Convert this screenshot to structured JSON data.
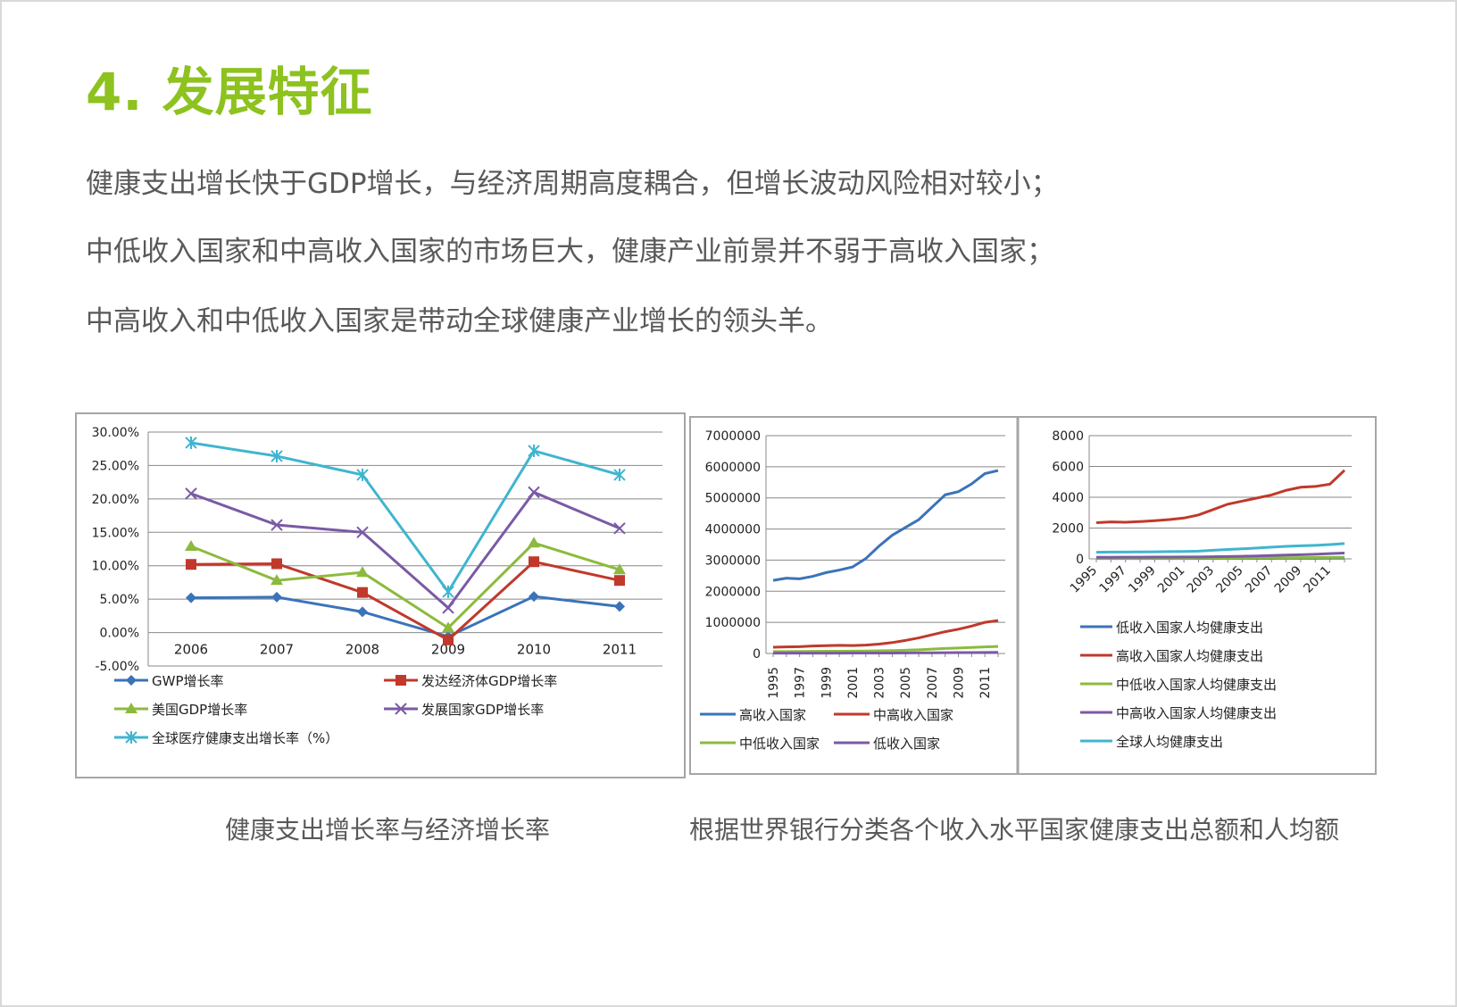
{
  "heading": "4. 发展特征",
  "paragraphs": [
    "健康支出增长快于GDP增长，与经济周期高度耦合，但增长波动风险相对较小；",
    "中低收入国家和中高收入国家的市场巨大，健康产业前景并不弱于高收入国家；",
    "中高收入和中低收入国家是带动全球健康产业增长的领头羊。"
  ],
  "captions": {
    "left": "健康支出增长率与经济增长率",
    "right": "根据世界银行分类各个收入水平国家健康支出总额和人均额"
  },
  "chart_data": [
    {
      "type": "line",
      "title": "",
      "x": [
        "2006",
        "2007",
        "2008",
        "2009",
        "2010",
        "2011"
      ],
      "yticks": [
        "30.00%",
        "25.00%",
        "20.00%",
        "15.00%",
        "10.00%",
        "5.00%",
        "0.00%",
        "-5.00%"
      ],
      "ylim": [
        -5,
        30
      ],
      "grid": true,
      "legend_position": "bottom",
      "series": [
        {
          "name": "GWP增长率",
          "color": "#3b73b9",
          "marker": "diamond",
          "values": [
            5.2,
            5.3,
            3.1,
            -0.6,
            5.4,
            3.9
          ]
        },
        {
          "name": "发达经济体GDP增长率",
          "color": "#c0392b",
          "marker": "square",
          "values": [
            10.2,
            10.3,
            6.0,
            -1.1,
            10.6,
            7.8
          ]
        },
        {
          "name": "美国GDP增长率",
          "color": "#8cba3e",
          "marker": "triangle",
          "values": [
            12.9,
            7.8,
            9.0,
            0.7,
            13.4,
            9.4
          ]
        },
        {
          "name": "发展国家GDP增长率",
          "color": "#7a5aa5",
          "marker": "x",
          "values": [
            20.8,
            16.1,
            15.0,
            3.7,
            21.0,
            15.6
          ]
        },
        {
          "name": "全球医疗健康支出增长率（%）",
          "color": "#3fb5cf",
          "marker": "star",
          "values": [
            28.4,
            26.4,
            23.6,
            6.1,
            27.2,
            23.6
          ]
        }
      ]
    },
    {
      "type": "line",
      "title": "",
      "x": [
        "1995",
        "1996",
        "1997",
        "1998",
        "1999",
        "2000",
        "2001",
        "2002",
        "2003",
        "2004",
        "2005",
        "2006",
        "2007",
        "2008",
        "2009",
        "2010",
        "2011",
        "2012"
      ],
      "xticks": [
        "1995",
        "1997",
        "1999",
        "2001",
        "2003",
        "2005",
        "2007",
        "2009",
        "2011"
      ],
      "yticks": [
        "7000000",
        "6000000",
        "5000000",
        "4000000",
        "3000000",
        "2000000",
        "1000000",
        "0"
      ],
      "ylim": [
        0,
        7000000
      ],
      "grid": true,
      "legend_position": "bottom",
      "series": [
        {
          "name": "高收入国家",
          "color": "#3b73b9",
          "values": [
            2350000,
            2420000,
            2400000,
            2480000,
            2600000,
            2680000,
            2780000,
            3050000,
            3450000,
            3800000,
            4050000,
            4300000,
            4700000,
            5100000,
            5200000,
            5450000,
            5780000,
            5880000
          ]
        },
        {
          "name": "中高收入国家",
          "color": "#c0392b",
          "values": [
            200000,
            210000,
            220000,
            240000,
            250000,
            260000,
            255000,
            270000,
            300000,
            350000,
            420000,
            500000,
            600000,
            700000,
            780000,
            880000,
            1000000,
            1060000
          ]
        },
        {
          "name": "中低收入国家",
          "color": "#8cba3e",
          "values": [
            60000,
            62000,
            65000,
            68000,
            70000,
            72000,
            75000,
            80000,
            85000,
            95000,
            105000,
            120000,
            140000,
            160000,
            175000,
            195000,
            210000,
            225000
          ]
        },
        {
          "name": "低收入国家",
          "color": "#7a5aa5",
          "values": [
            10000,
            10000,
            11000,
            11000,
            12000,
            12000,
            13000,
            14000,
            15000,
            16000,
            18000,
            20000,
            22000,
            25000,
            27000,
            30000,
            33000,
            36000
          ]
        }
      ]
    },
    {
      "type": "line",
      "title": "",
      "x": [
        "1995",
        "1996",
        "1997",
        "1998",
        "1999",
        "2000",
        "2001",
        "2002",
        "2003",
        "2004",
        "2005",
        "2006",
        "2007",
        "2008",
        "2009",
        "2010",
        "2011",
        "2012"
      ],
      "xticks": [
        "1995",
        "1997",
        "1999",
        "2001",
        "2003",
        "2005",
        "2007",
        "2009",
        "2011"
      ],
      "yticks": [
        "8000",
        "6000",
        "4000",
        "2000",
        "0"
      ],
      "ylim": [
        0,
        8000
      ],
      "grid": true,
      "legend_position": "bottom",
      "series": [
        {
          "name": "低收入国家人均健康支出",
          "color": "#3b73b9",
          "values": [
            20,
            20,
            21,
            21,
            22,
            22,
            23,
            24,
            25,
            26,
            28,
            30,
            32,
            34,
            36,
            38,
            40,
            42
          ]
        },
        {
          "name": "高收入国家人均健康支出",
          "color": "#c0392b",
          "values": [
            2350,
            2400,
            2380,
            2420,
            2480,
            2550,
            2650,
            2850,
            3200,
            3550,
            3750,
            3950,
            4150,
            4450,
            4650,
            4700,
            4850,
            5750
          ]
        },
        {
          "name": "中低收入国家人均健康支出",
          "color": "#8cba3e",
          "values": [
            40,
            41,
            42,
            43,
            44,
            45,
            46,
            48,
            50,
            54,
            58,
            62,
            68,
            74,
            80,
            86,
            92,
            98
          ]
        },
        {
          "name": "中高收入国家人均健康支出",
          "color": "#7a5aa5",
          "values": [
            100,
            105,
            110,
            112,
            115,
            118,
            120,
            125,
            135,
            150,
            170,
            190,
            215,
            245,
            270,
            300,
            340,
            380
          ]
        },
        {
          "name": "全球人均健康支出",
          "color": "#3fb5cf",
          "values": [
            430,
            440,
            440,
            450,
            460,
            470,
            480,
            500,
            560,
            610,
            650,
            700,
            760,
            810,
            850,
            880,
            930,
            990
          ]
        }
      ]
    }
  ]
}
